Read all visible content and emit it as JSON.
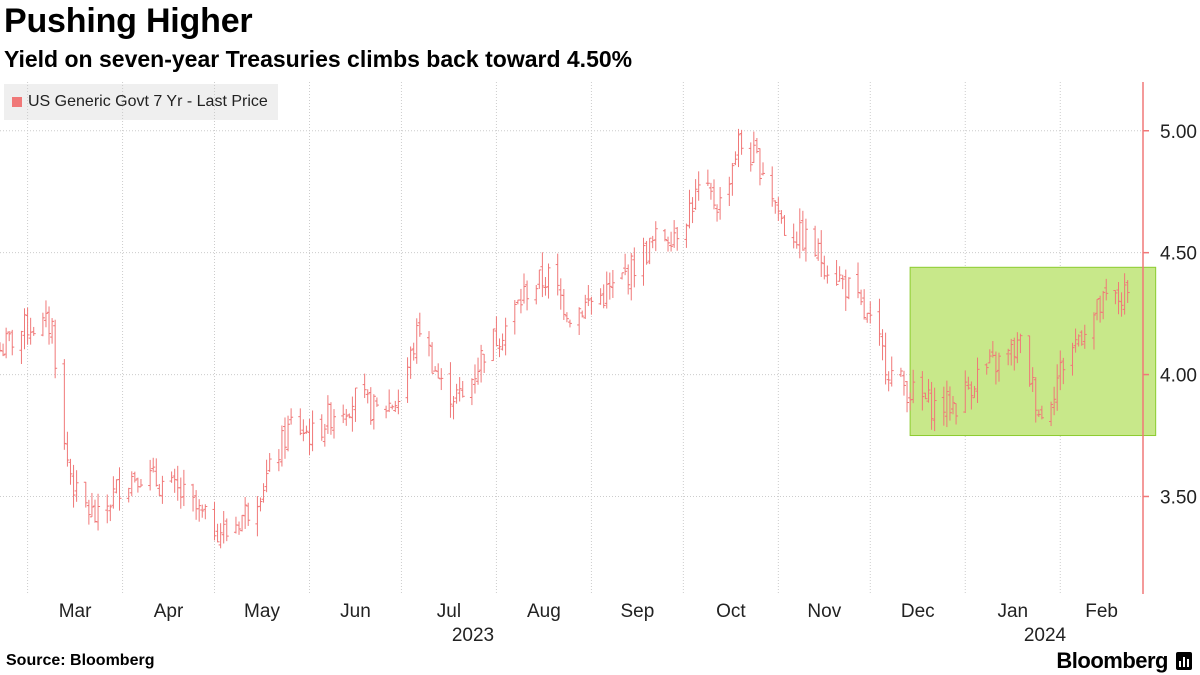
{
  "header": {
    "title": "Pushing Higher",
    "subtitle": "Yield on seven-year Treasuries climbs back toward 4.50%"
  },
  "footer": {
    "source": "Source: Bloomberg",
    "brand": "Bloomberg"
  },
  "colors": {
    "series": "#f07878",
    "highlight_fill": "#c8e88a",
    "highlight_stroke": "#8ccc30",
    "grid": "#cccccc",
    "axis": "#f07878"
  },
  "chart_data": {
    "type": "line",
    "title": "Pushing Higher",
    "subtitle": "Yield on seven-year Treasuries climbs back toward 4.50%",
    "series": [
      {
        "name": "US Generic Govt 7 Yr - Last Price",
        "x": [
          "Feb 20, 2023",
          "Mar 1, 2023",
          "Mar 9, 2023",
          "Mar 13, 2023",
          "Mar 17, 2023",
          "Mar 24, 2023",
          "Mar 31, 2023",
          "Apr 6, 2023",
          "Apr 14, 2023",
          "Apr 21, 2023",
          "Apr 28, 2023",
          "May 5, 2023",
          "May 12, 2023",
          "May 19, 2023",
          "May 26, 2023",
          "Jun 2, 2023",
          "Jun 9, 2023",
          "Jun 16, 2023",
          "Jun 23, 2023",
          "Jun 30, 2023",
          "Jul 7, 2023",
          "Jul 14, 2023",
          "Jul 21, 2023",
          "Jul 28, 2023",
          "Aug 4, 2023",
          "Aug 11, 2023",
          "Aug 18, 2023",
          "Aug 25, 2023",
          "Sep 1, 2023",
          "Sep 8, 2023",
          "Sep 15, 2023",
          "Sep 22, 2023",
          "Sep 29, 2023",
          "Oct 6, 2023",
          "Oct 13, 2023",
          "Oct 19, 2023",
          "Oct 27, 2023",
          "Nov 3, 2023",
          "Nov 10, 2023",
          "Nov 17, 2023",
          "Nov 24, 2023",
          "Dec 1, 2023",
          "Dec 8, 2023",
          "Dec 15, 2023",
          "Dec 22, 2023",
          "Dec 29, 2023",
          "Jan 5, 2024",
          "Jan 12, 2024",
          "Jan 19, 2024",
          "Jan 26, 2024",
          "Feb 2, 2024",
          "Feb 9, 2024",
          "Feb 16, 2024",
          "Feb 23, 2024"
        ],
        "values": [
          4.1,
          4.2,
          4.2,
          3.7,
          3.5,
          3.4,
          3.55,
          3.6,
          3.55,
          3.5,
          3.4,
          3.35,
          3.45,
          3.6,
          3.8,
          3.75,
          3.85,
          3.9,
          3.85,
          3.9,
          4.2,
          3.95,
          3.9,
          4.1,
          4.2,
          4.35,
          4.4,
          4.25,
          4.3,
          4.35,
          4.45,
          4.55,
          4.6,
          4.75,
          4.7,
          4.95,
          4.85,
          4.6,
          4.55,
          4.45,
          4.35,
          4.2,
          4.0,
          3.92,
          3.87,
          3.88,
          4.0,
          4.05,
          4.12,
          3.82,
          4.05,
          4.2,
          4.3,
          4.32
        ]
      }
    ],
    "x_ticks": [
      "Mar",
      "Apr",
      "May",
      "Jun",
      "Jul",
      "Aug",
      "Sep",
      "Oct",
      "Nov",
      "Dec",
      "Jan",
      "Feb"
    ],
    "x_year_labels": [
      "2023",
      "2024"
    ],
    "y_ticks": [
      "3.50",
      "4.00",
      "4.50",
      "5.00"
    ],
    "ylim": [
      3.1,
      5.2
    ],
    "grid": true,
    "legend": "top-left",
    "annotations": [
      {
        "type": "highlight_box",
        "x_range": [
          "Dec 14, 2023",
          "Feb 23, 2024"
        ],
        "y_range": [
          3.75,
          4.44
        ]
      }
    ]
  }
}
